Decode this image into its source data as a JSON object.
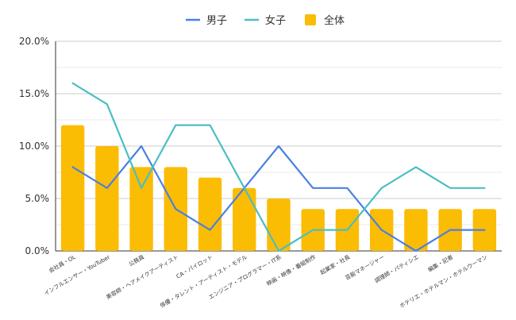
{
  "chart_data": {
    "type": "bar",
    "categories": [
      "会社員・OL",
      "インフルエンサー・YouTuber",
      "公務員",
      "美容師・ヘアメイクアーティスト",
      "CA・パイロット",
      "俳優・タレント・アーティスト・モデル",
      "エンジニア・プログラマー・IT系",
      "映画・映像・番組制作",
      "起業家・社長",
      "芸能マネージャー",
      "調理師・パティシエ",
      "編集・記者",
      "ホテリエ・ホテルマン・ホテルウーマン"
    ],
    "series": [
      {
        "name": "男子",
        "type": "line",
        "color": "#4a80e3",
        "values": [
          8,
          6,
          10,
          4,
          2,
          6,
          10,
          6,
          6,
          2,
          0,
          2,
          2
        ]
      },
      {
        "name": "女子",
        "type": "line",
        "color": "#4bbec4",
        "values": [
          16,
          14,
          6,
          12,
          12,
          6,
          0,
          2,
          2,
          6,
          8,
          6,
          6
        ]
      },
      {
        "name": "全体",
        "type": "bar",
        "color": "#fbbc04",
        "values": [
          12,
          10,
          8,
          8,
          7,
          6,
          5,
          4,
          4,
          4,
          4,
          4,
          4
        ]
      }
    ],
    "y_ticks": [
      "0.0%",
      "5.0%",
      "10.0%",
      "15.0%",
      "20.0%"
    ],
    "ylim": [
      0,
      20
    ],
    "grid": true,
    "legend_position": "top"
  }
}
